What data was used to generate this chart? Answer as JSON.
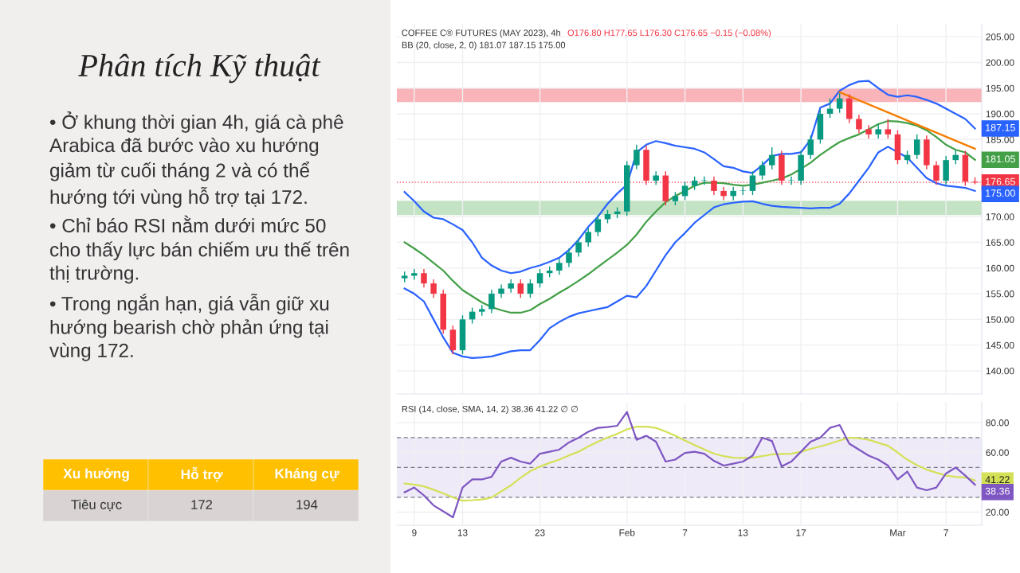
{
  "chart_data": [
    {
      "type": "other",
      "title": "Phân tích Kỹ thuật",
      "annotations": [
        "• Ở khung thời gian 4h, giá cà phê Arabica đã bước vào xu hướng giảm từ cuối tháng 2 và có thể hướng tới vùng hỗ trợ tại 172.",
        "• Chỉ báo RSI nằm dưới mức 50 cho thấy lực bán chiếm ưu thế trên thị trường.",
        "• Trong ngắn hạn, giá vẫn giữ xu hướng bearish chờ phản ứng tại vùng 172."
      ],
      "categories": [
        "Xu hướng",
        "Hỗ trợ",
        "Kháng cự"
      ],
      "cell_labels": [
        [
          "Tiêu cực",
          "172",
          "194"
        ]
      ]
    },
    {
      "type": "candlestick",
      "title": "COFFEE C® FUTURES (MAY 2023), 4h",
      "subtitle": "BB (20, close, 2, 0) 181.07 187.15 175.00",
      "annotations": [
        "O176.80 H177.65 L176.30 C176.65 −0.15 (−0.08%)"
      ],
      "categories": [
        null,
        null,
        null,
        null,
        null,
        null,
        null,
        null,
        null,
        null,
        null,
        null,
        null,
        null,
        null,
        null,
        null,
        null,
        null,
        null,
        null,
        null,
        null,
        null,
        null,
        null,
        null,
        null,
        null,
        null,
        null,
        null,
        null,
        null,
        null,
        null,
        null,
        null,
        null,
        null,
        null,
        null,
        null,
        null,
        null,
        null,
        null,
        null,
        null,
        null,
        null,
        null,
        null,
        null,
        null,
        null,
        null,
        null,
        null,
        null
      ],
      "ohlc": [
        [
          158,
          159.3,
          157.2,
          158.5
        ],
        [
          158.5,
          159.8,
          157.7,
          159
        ],
        [
          159,
          159.8,
          156.2,
          157
        ],
        [
          157,
          157.8,
          154.2,
          155
        ],
        [
          155,
          155.8,
          147.2,
          148
        ],
        [
          148,
          148.8,
          143.2,
          144
        ],
        [
          144,
          150.8,
          143.2,
          150
        ],
        [
          150,
          152.3,
          149.2,
          151.5
        ],
        [
          151.5,
          152.8,
          150.7,
          152
        ],
        [
          152,
          155.8,
          151.2,
          155
        ],
        [
          155,
          156.8,
          154.2,
          156
        ],
        [
          156,
          157.8,
          155.2,
          157
        ],
        [
          157,
          157.8,
          154.2,
          155
        ],
        [
          155,
          157.8,
          154.2,
          157
        ],
        [
          157,
          159.8,
          156.2,
          159
        ],
        [
          159,
          160.3,
          158.2,
          159.5
        ],
        [
          159.5,
          161.8,
          158.7,
          161
        ],
        [
          161,
          163.8,
          160.2,
          163
        ],
        [
          163,
          165.8,
          162.2,
          165
        ],
        [
          165,
          167.8,
          164.2,
          167
        ],
        [
          167,
          170.3,
          166.2,
          169.5
        ],
        [
          169.5,
          171.3,
          168.7,
          170.5
        ],
        [
          170.5,
          171.8,
          169.7,
          171
        ],
        [
          171,
          180.8,
          170.2,
          180
        ],
        [
          180,
          184,
          179.2,
          183
        ],
        [
          183,
          183.8,
          176.2,
          177
        ],
        [
          177,
          178.8,
          176.2,
          178
        ],
        [
          178,
          178.8,
          172.2,
          173
        ],
        [
          173,
          174.8,
          172.2,
          174
        ],
        [
          174,
          176.8,
          173.2,
          176
        ],
        [
          176,
          177.8,
          175.2,
          177
        ],
        [
          177,
          177.8,
          176.2,
          177
        ],
        [
          177,
          177.8,
          174.2,
          175
        ],
        [
          175,
          175.8,
          173.2,
          174
        ],
        [
          174,
          175.8,
          173.2,
          175
        ],
        [
          175,
          175.8,
          174.2,
          175
        ],
        [
          175,
          178.8,
          174.2,
          178
        ],
        [
          178,
          180.8,
          177.2,
          180
        ],
        [
          180,
          183.5,
          179.2,
          182
        ],
        [
          182,
          182.8,
          176.2,
          177
        ],
        [
          177,
          177.8,
          176.2,
          177
        ],
        [
          177,
          182.8,
          176.2,
          182
        ],
        [
          182,
          185.8,
          181.2,
          185
        ],
        [
          185,
          190.8,
          184.2,
          190
        ],
        [
          190,
          193,
          189.2,
          191
        ],
        [
          191,
          194,
          190.2,
          193
        ],
        [
          193,
          193.8,
          188.2,
          189
        ],
        [
          189,
          189.8,
          186.2,
          187
        ],
        [
          187,
          187.8,
          185.2,
          186
        ],
        [
          186,
          188,
          185.2,
          187
        ],
        [
          187,
          189,
          185.2,
          186
        ],
        [
          186,
          186.8,
          180.2,
          181
        ],
        [
          181,
          182.8,
          180.2,
          182
        ],
        [
          182,
          186,
          181.2,
          185
        ],
        [
          185,
          185.8,
          179.2,
          180
        ],
        [
          180,
          180.8,
          176.2,
          177
        ],
        [
          177,
          181.8,
          176.2,
          181
        ],
        [
          181,
          183,
          180.2,
          182
        ],
        [
          182,
          182.8,
          176,
          176.8
        ],
        [
          176.8,
          177.65,
          176.3,
          176.65
        ]
      ],
      "series": [
        {
          "type": "line",
          "color": "#2962ff",
          "values": [
            174.8,
            173,
            171,
            169.8,
            169.5,
            168.5,
            167.4,
            165,
            162,
            160.5,
            159.5,
            159,
            159.3,
            160,
            160.5,
            161.2,
            162,
            163.5,
            165.5,
            168,
            170,
            172.5,
            174.5,
            176.2,
            182.5,
            184,
            184.7,
            184.3,
            183.8,
            183.5,
            183.2,
            182.5,
            181.2,
            179.8,
            179.5,
            178.8,
            178.5,
            180,
            181.8,
            182.2,
            182.2,
            182.5,
            185,
            191.2,
            192,
            194.5,
            195.6,
            196.3,
            196.4,
            195,
            193.7,
            193.3,
            193.6,
            193.3,
            192.7,
            192,
            191,
            190,
            189,
            187.15
          ],
          "value_labels": [
            null,
            null,
            null,
            null,
            null,
            null,
            null,
            null,
            null,
            null,
            null,
            null,
            null,
            null,
            null,
            null,
            null,
            null,
            null,
            null,
            null,
            null,
            null,
            null,
            null,
            null,
            null,
            null,
            null,
            null,
            null,
            null,
            null,
            null,
            null,
            null,
            null,
            null,
            null,
            null,
            null,
            null,
            null,
            null,
            null,
            null,
            null,
            null,
            null,
            null,
            null,
            null,
            null,
            null,
            null,
            null,
            null,
            null,
            null,
            "187.15"
          ]
        },
        {
          "type": "line",
          "color": "#43a047",
          "values": [
            165,
            163.8,
            162.5,
            161,
            159.5,
            157.5,
            155.7,
            154.5,
            153.3,
            152.4,
            151.8,
            151.3,
            151.3,
            151.8,
            153,
            154,
            155.2,
            156.3,
            157.5,
            158.8,
            160.2,
            161.6,
            163,
            164.5,
            166.5,
            169,
            171,
            172.8,
            174,
            175,
            176,
            176.6,
            176.6,
            176.5,
            176.2,
            176,
            176.2,
            176.6,
            177,
            177.4,
            178.2,
            179.3,
            180.5,
            182,
            183.3,
            184.5,
            185.3,
            186,
            187,
            188,
            188.6,
            188.5,
            188.2,
            187.7,
            186.8,
            185.5,
            184,
            183,
            182.5,
            181.05
          ],
          "value_labels": [
            null,
            null,
            null,
            null,
            null,
            null,
            null,
            null,
            null,
            null,
            null,
            null,
            null,
            null,
            null,
            null,
            null,
            null,
            null,
            null,
            null,
            null,
            null,
            null,
            null,
            null,
            null,
            null,
            null,
            null,
            null,
            null,
            null,
            null,
            null,
            null,
            null,
            null,
            null,
            null,
            null,
            null,
            null,
            null,
            null,
            null,
            null,
            null,
            null,
            null,
            null,
            null,
            null,
            null,
            null,
            null,
            null,
            null,
            null,
            "181.05"
          ]
        },
        {
          "type": "line",
          "color": "#2962ff",
          "values": [
            156,
            155,
            153.5,
            150,
            146.5,
            143.5,
            142.8,
            142.5,
            142.6,
            142.8,
            143.3,
            143.8,
            144,
            144,
            146,
            148.3,
            149.5,
            150.5,
            151.2,
            151.6,
            152,
            152.4,
            153.5,
            154.6,
            154.3,
            156.5,
            159.5,
            162.5,
            165,
            166.8,
            168.8,
            170.3,
            171.8,
            172.4,
            172.7,
            172.9,
            173,
            172.5,
            172.1,
            171.9,
            171.8,
            171.7,
            171.6,
            171.7,
            171.7,
            172.5,
            174.5,
            177,
            179.5,
            182.5,
            183.6,
            null,
            181.5,
            179.5,
            177.5,
            176.5,
            176,
            175.8,
            175.6,
            175
          ],
          "value_labels": [
            null,
            null,
            null,
            null,
            null,
            null,
            null,
            null,
            null,
            null,
            null,
            null,
            null,
            null,
            null,
            null,
            null,
            null,
            null,
            null,
            null,
            null,
            null,
            null,
            null,
            null,
            null,
            null,
            null,
            null,
            null,
            null,
            null,
            null,
            null,
            null,
            null,
            null,
            null,
            null,
            null,
            null,
            null,
            null,
            null,
            null,
            null,
            null,
            null,
            null,
            null,
            null,
            null,
            null,
            null,
            null,
            null,
            null,
            null,
            "175.00"
          ]
        },
        {
          "type": "line",
          "color": "#f57c00",
          "values": [
            null,
            null,
            null,
            null,
            null,
            null,
            null,
            null,
            null,
            null,
            null,
            null,
            null,
            null,
            null,
            null,
            null,
            null,
            null,
            null,
            null,
            null,
            null,
            null,
            null,
            null,
            null,
            null,
            null,
            null,
            null,
            null,
            null,
            null,
            null,
            null,
            null,
            null,
            null,
            null,
            null,
            null,
            null,
            null,
            null,
            194.2,
            null,
            null,
            null,
            null,
            null,
            null,
            null,
            null,
            null,
            null,
            null,
            null,
            null,
            183.2
          ]
        }
      ],
      "ylim": [
        135.5,
        207.5
      ],
      "yticks": [
        {
          "value": 140,
          "label": "140.00"
        },
        {
          "value": 145,
          "label": "145.00"
        },
        {
          "value": 150,
          "label": "150.00"
        },
        {
          "value": 155,
          "label": "155.00"
        },
        {
          "value": 160,
          "label": "160.00"
        },
        {
          "value": 165,
          "label": "165.00"
        },
        {
          "value": 170,
          "label": "170.00"
        },
        {
          "value": 185,
          "label": "185.00"
        },
        {
          "value": 190,
          "label": "190.00"
        },
        {
          "value": 195,
          "label": "195.00"
        },
        {
          "value": 200,
          "label": "200.00"
        },
        {
          "value": 205,
          "label": "205.00"
        }
      ],
      "ref_lines": [
        {
          "axis": "y",
          "value": 176.65,
          "label": "176.65",
          "color": "#f23645",
          "line_style": "dotted"
        }
      ],
      "bands": [
        {
          "axis": "y",
          "from": 192.3,
          "to": 195,
          "color": "#f8b4b9"
        },
        {
          "axis": "y",
          "from": 170.3,
          "to": 173.1,
          "color": "#c4e3c5"
        }
      ],
      "grid": true,
      "tick_labels": "y"
    },
    {
      "type": "line",
      "title": "RSI (14, close, SMA, 14, 2) 38.36 41.22 ∅ ∅",
      "categories": [
        null,
        "9",
        null,
        null,
        null,
        null,
        "13",
        null,
        null,
        null,
        null,
        null,
        null,
        null,
        "23",
        null,
        null,
        null,
        null,
        null,
        null,
        null,
        null,
        "Feb",
        null,
        null,
        null,
        null,
        null,
        "7",
        null,
        null,
        null,
        null,
        null,
        "13",
        null,
        null,
        null,
        null,
        null,
        "17",
        null,
        null,
        null,
        null,
        null,
        null,
        null,
        null,
        null,
        "Mar",
        null,
        null,
        null,
        null,
        "7",
        null,
        null,
        null
      ],
      "series": [
        {
          "color": "#d4e157",
          "values": [
            39.2,
            38.5,
            37.3,
            35,
            32.5,
            29.9,
            27.7,
            28,
            28.5,
            29.8,
            33.9,
            38,
            43,
            47.5,
            50.5,
            53,
            55.2,
            58,
            60.5,
            64,
            67.2,
            70,
            72.5,
            75.5,
            77.3,
            77.3,
            76.5,
            74,
            71.2,
            68,
            65,
            62,
            59.2,
            57.5,
            56.5,
            56.3,
            56.5,
            57.5,
            58.7,
            59,
            59.2,
            60.5,
            62.4,
            64,
            65.9,
            68,
            69.9,
            69.5,
            68.5,
            66.5,
            64.5,
            60,
            55.2,
            51.5,
            48.5,
            46.5,
            44.5,
            43.7,
            43.2,
            41.22
          ],
          "value_labels": [
            null,
            null,
            null,
            null,
            null,
            null,
            null,
            null,
            null,
            null,
            null,
            null,
            null,
            null,
            null,
            null,
            null,
            null,
            null,
            null,
            null,
            null,
            null,
            null,
            null,
            null,
            null,
            null,
            null,
            null,
            null,
            null,
            null,
            null,
            null,
            null,
            null,
            null,
            null,
            null,
            null,
            null,
            null,
            null,
            null,
            null,
            null,
            null,
            null,
            null,
            null,
            null,
            null,
            null,
            null,
            null,
            null,
            null,
            null,
            "41.22"
          ]
        },
        {
          "color": "#7e57c2",
          "values": [
            33.3,
            36.5,
            31.2,
            24.5,
            20.5,
            16.5,
            36.5,
            41.9,
            41.9,
            43.7,
            53.9,
            56.5,
            53.9,
            52.5,
            59.2,
            60.5,
            61.9,
            66.7,
            69.9,
            73.9,
            76.5,
            77,
            77.9,
            87.2,
            68.5,
            71.2,
            67.2,
            53.9,
            55.2,
            59.7,
            60.5,
            59.2,
            54.4,
            51.2,
            52.5,
            53.9,
            57.9,
            69.9,
            67.7,
            50.7,
            53.9,
            60.5,
            67.2,
            69.9,
            76.5,
            78.4,
            65.9,
            61.9,
            57.9,
            55.2,
            51.2,
            41.9,
            47.2,
            36.5,
            34.7,
            36.5,
            45.9,
            49.9,
            44.5,
            38.36
          ],
          "value_labels": [
            null,
            null,
            null,
            null,
            null,
            null,
            null,
            null,
            null,
            null,
            null,
            null,
            null,
            null,
            null,
            null,
            null,
            null,
            null,
            null,
            null,
            null,
            null,
            null,
            null,
            null,
            null,
            null,
            null,
            null,
            null,
            null,
            null,
            null,
            null,
            null,
            null,
            null,
            null,
            null,
            null,
            null,
            null,
            null,
            null,
            null,
            null,
            null,
            null,
            null,
            null,
            null,
            null,
            null,
            null,
            null,
            null,
            null,
            null,
            "38.36"
          ]
        }
      ],
      "ylim": [
        11.2,
        93.9
      ],
      "yticks": [
        {
          "value": 20,
          "label": "20.00"
        },
        {
          "value": 60,
          "label": "60.00"
        },
        {
          "value": 80,
          "label": "80.00"
        }
      ],
      "ref_lines": [
        {
          "axis": "y",
          "value": 70,
          "color": "#787b86",
          "line_style": "dashed"
        },
        {
          "axis": "y",
          "value": 50,
          "color": "#787b86",
          "line_style": "dashed"
        },
        {
          "axis": "y",
          "value": 30,
          "color": "#787b86",
          "line_style": "dashed"
        }
      ],
      "bands": [
        {
          "axis": "y",
          "from": 30,
          "to": 70,
          "color": "#efeaf8"
        }
      ],
      "grid": true
    }
  ]
}
